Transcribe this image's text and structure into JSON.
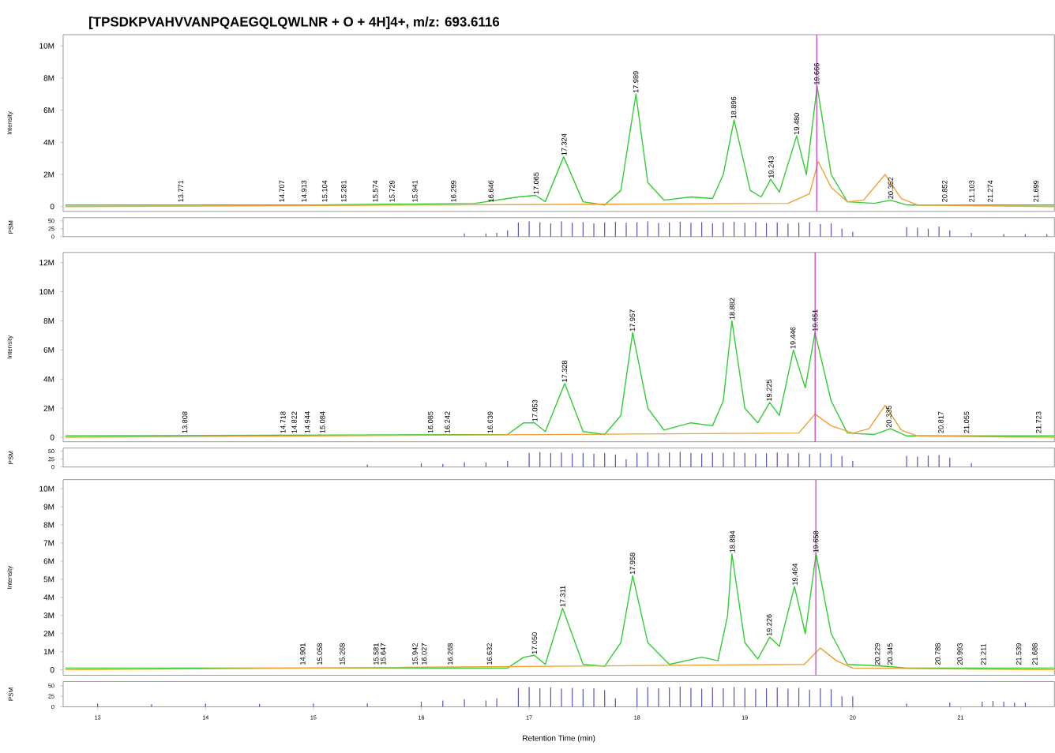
{
  "chart_data": [
    {
      "type": "line",
      "title": "[TPSDKPVAHVVANPQAEGQLQWLNR + O + 4H]4+, m/z: 693.6116",
      "ylabel": "Intensity",
      "xlim": [
        12.68,
        21.87
      ],
      "ylim": [
        -0.3,
        10.7
      ],
      "tick_labels": "y",
      "yticks": [
        0,
        {
          "value": 2,
          "label": "2M"
        },
        {
          "value": 4,
          "label": "4M"
        },
        {
          "value": 6,
          "label": "6M"
        },
        {
          "value": 8,
          "label": "8M"
        },
        {
          "value": 10,
          "label": "10M"
        }
      ],
      "series": [
        {
          "color": "#33cc33",
          "x": [
            12.7,
            15.0,
            16.5,
            16.9,
            17.06,
            17.15,
            17.32,
            17.5,
            17.7,
            17.85,
            17.99,
            18.1,
            18.25,
            18.5,
            18.7,
            18.8,
            18.9,
            19.05,
            19.15,
            19.24,
            19.32,
            19.48,
            19.57,
            19.67,
            19.8,
            19.95,
            20.2,
            20.35,
            20.5,
            21.87
          ],
          "values": [
            0.1,
            0.1,
            0.2,
            0.6,
            0.7,
            0.3,
            3.1,
            0.3,
            0.1,
            1.0,
            7.0,
            1.5,
            0.4,
            0.6,
            0.5,
            2.0,
            5.4,
            1.0,
            0.6,
            1.7,
            0.9,
            4.4,
            2.0,
            7.5,
            2.0,
            0.3,
            0.2,
            0.4,
            0.1,
            0.1
          ]
        },
        {
          "color": "#f0a030",
          "x": [
            12.7,
            19.4,
            19.6,
            19.68,
            19.8,
            19.95,
            20.1,
            20.3,
            20.45,
            20.6,
            21.87
          ],
          "values": [
            0,
            0.2,
            0.8,
            2.8,
            1.2,
            0.3,
            0.4,
            2.0,
            0.5,
            0.1,
            0
          ]
        }
      ],
      "ref_lines": [
        {
          "axis": "x",
          "value": 19.666,
          "color": "#cc33cc"
        }
      ],
      "annotations": [
        {
          "text": "13.771",
          "x": 13.771,
          "y": 0.2
        },
        {
          "text": "14.707",
          "x": 14.707,
          "y": 0.2
        },
        {
          "text": "14.913",
          "x": 14.913,
          "y": 0.2
        },
        {
          "text": "15.104",
          "x": 15.104,
          "y": 0.2
        },
        {
          "text": "15.281",
          "x": 15.281,
          "y": 0.2
        },
        {
          "text": "15.574",
          "x": 15.574,
          "y": 0.2
        },
        {
          "text": "15.729",
          "x": 15.729,
          "y": 0.2
        },
        {
          "text": "15.941",
          "x": 15.941,
          "y": 0.2
        },
        {
          "text": "16.299",
          "x": 16.299,
          "y": 0.2
        },
        {
          "text": "16.646",
          "x": 16.646,
          "y": 0.2
        },
        {
          "text": "17.065",
          "x": 17.065,
          "y": 0.7
        },
        {
          "text": "17.324",
          "x": 17.324,
          "y": 3.1
        },
        {
          "text": "17.989",
          "x": 17.989,
          "y": 7.0
        },
        {
          "text": "18.896",
          "x": 18.896,
          "y": 5.4
        },
        {
          "text": "19.243",
          "x": 19.243,
          "y": 1.7
        },
        {
          "text": "19.480",
          "x": 19.48,
          "y": 4.4
        },
        {
          "text": "19.666",
          "x": 19.666,
          "y": 7.5
        },
        {
          "text": "20.352",
          "x": 20.352,
          "y": 0.4
        },
        {
          "text": "20.852",
          "x": 20.852,
          "y": 0.2
        },
        {
          "text": "21.103",
          "x": 21.103,
          "y": 0.2
        },
        {
          "text": "21.274",
          "x": 21.274,
          "y": 0.2
        },
        {
          "text": "21.699",
          "x": 21.699,
          "y": 0.2
        }
      ]
    },
    {
      "type": "bar",
      "ylabel": "PSM",
      "xlim": [
        12.68,
        21.87
      ],
      "ylim": [
        0,
        60
      ],
      "yticks": [
        0,
        25,
        50
      ],
      "tick_labels": "y",
      "color": "#5555bb",
      "x": [
        16.4,
        16.6,
        16.7,
        16.8,
        16.9,
        17.0,
        17.1,
        17.2,
        17.3,
        17.4,
        17.5,
        17.6,
        17.7,
        17.8,
        17.9,
        18.0,
        18.1,
        18.2,
        18.3,
        18.4,
        18.5,
        18.6,
        18.7,
        18.8,
        18.9,
        19.0,
        19.1,
        19.2,
        19.3,
        19.4,
        19.5,
        19.6,
        19.7,
        19.8,
        19.9,
        20.0,
        20.5,
        20.6,
        20.7,
        20.8,
        20.9,
        21.1,
        21.4,
        21.6,
        21.8
      ],
      "values": [
        10,
        10,
        12,
        20,
        45,
        48,
        45,
        42,
        48,
        44,
        46,
        42,
        45,
        47,
        44,
        46,
        48,
        43,
        45,
        47,
        44,
        46,
        42,
        45,
        47,
        44,
        46,
        43,
        45,
        42,
        44,
        46,
        40,
        42,
        25,
        15,
        30,
        28,
        25,
        32,
        20,
        12,
        8,
        8,
        8
      ]
    },
    {
      "type": "line",
      "ylabel": "Intensity",
      "xlim": [
        12.68,
        21.87
      ],
      "ylim": [
        -0.3,
        12.7
      ],
      "tick_labels": "y",
      "yticks": [
        0,
        {
          "value": 2,
          "label": "2M"
        },
        {
          "value": 4,
          "label": "4M"
        },
        {
          "value": 6,
          "label": "6M"
        },
        {
          "value": 8,
          "label": "8M"
        },
        {
          "value": 10,
          "label": "10M"
        },
        {
          "value": 12,
          "label": "12M"
        }
      ],
      "series": [
        {
          "color": "#33cc33",
          "x": [
            12.7,
            16.8,
            16.95,
            17.05,
            17.15,
            17.33,
            17.5,
            17.7,
            17.85,
            17.96,
            18.1,
            18.25,
            18.5,
            18.7,
            18.8,
            18.88,
            19.0,
            19.12,
            19.23,
            19.32,
            19.45,
            19.56,
            19.65,
            19.8,
            19.95,
            20.2,
            20.35,
            20.5,
            21.87
          ],
          "values": [
            0.1,
            0.2,
            1.0,
            1.0,
            0.4,
            3.7,
            0.4,
            0.2,
            1.5,
            7.2,
            2.0,
            0.5,
            1.0,
            0.8,
            2.5,
            8.0,
            2.0,
            1.0,
            2.4,
            1.5,
            6.0,
            3.4,
            7.2,
            2.5,
            0.3,
            0.2,
            0.6,
            0.1,
            0.1
          ]
        },
        {
          "color": "#f0a030",
          "x": [
            12.7,
            19.5,
            19.65,
            19.8,
            20.0,
            20.15,
            20.3,
            20.45,
            20.6,
            21.87
          ],
          "values": [
            0,
            0.3,
            1.6,
            0.8,
            0.3,
            0.6,
            2.2,
            0.5,
            0.1,
            0
          ]
        }
      ],
      "ref_lines": [
        {
          "axis": "x",
          "value": 19.651,
          "color": "#cc33cc"
        }
      ],
      "annotations": [
        {
          "text": "13.808",
          "x": 13.808,
          "y": 0.2
        },
        {
          "text": "14.718",
          "x": 14.718,
          "y": 0.2
        },
        {
          "text": "14.822",
          "x": 14.822,
          "y": 0.2
        },
        {
          "text": "14.944",
          "x": 14.944,
          "y": 0.2
        },
        {
          "text": "15.084",
          "x": 15.084,
          "y": 0.2
        },
        {
          "text": "16.085",
          "x": 16.085,
          "y": 0.2
        },
        {
          "text": "16.242",
          "x": 16.242,
          "y": 0.2
        },
        {
          "text": "16.639",
          "x": 16.639,
          "y": 0.2
        },
        {
          "text": "17.053",
          "x": 17.053,
          "y": 1.0
        },
        {
          "text": "17.328",
          "x": 17.328,
          "y": 3.7
        },
        {
          "text": "17.957",
          "x": 17.957,
          "y": 7.2
        },
        {
          "text": "18.882",
          "x": 18.882,
          "y": 8.0
        },
        {
          "text": "19.225",
          "x": 19.225,
          "y": 2.4
        },
        {
          "text": "19.446",
          "x": 19.446,
          "y": 6.0
        },
        {
          "text": "19.651",
          "x": 19.651,
          "y": 7.2
        },
        {
          "text": "20.335",
          "x": 20.335,
          "y": 0.6
        },
        {
          "text": "20.817",
          "x": 20.817,
          "y": 0.2
        },
        {
          "text": "21.055",
          "x": 21.055,
          "y": 0.2
        },
        {
          "text": "21.723",
          "x": 21.723,
          "y": 0.2
        }
      ]
    },
    {
      "type": "bar",
      "ylabel": "PSM",
      "xlim": [
        12.68,
        21.87
      ],
      "ylim": [
        0,
        60
      ],
      "yticks": [
        0,
        25,
        50
      ],
      "tick_labels": "y",
      "color": "#5555bb",
      "x": [
        15.5,
        16.0,
        16.2,
        16.4,
        16.6,
        16.8,
        17.0,
        17.1,
        17.2,
        17.3,
        17.4,
        17.5,
        17.6,
        17.7,
        17.8,
        17.9,
        18.0,
        18.1,
        18.2,
        18.3,
        18.4,
        18.5,
        18.6,
        18.7,
        18.8,
        18.9,
        19.0,
        19.1,
        19.2,
        19.3,
        19.4,
        19.5,
        19.6,
        19.7,
        19.8,
        19.9,
        20.0,
        20.5,
        20.6,
        20.7,
        20.8,
        20.9,
        21.1
      ],
      "values": [
        8,
        12,
        10,
        15,
        15,
        20,
        45,
        47,
        44,
        46,
        43,
        45,
        42,
        44,
        40,
        25,
        45,
        47,
        44,
        46,
        48,
        45,
        43,
        46,
        44,
        47,
        45,
        42,
        44,
        46,
        43,
        45,
        41,
        44,
        42,
        35,
        20,
        35,
        33,
        36,
        38,
        30,
        12
      ]
    },
    {
      "type": "line",
      "ylabel": "Intensity",
      "xlim": [
        12.68,
        21.87
      ],
      "ylim": [
        -0.3,
        10.5
      ],
      "tick_labels": "y",
      "yticks": [
        0,
        {
          "value": 1,
          "label": "1M"
        },
        {
          "value": 2,
          "label": "2M"
        },
        {
          "value": 3,
          "label": "3M"
        },
        {
          "value": 4,
          "label": "4M"
        },
        {
          "value": 5,
          "label": "5M"
        },
        {
          "value": 6,
          "label": "6M"
        },
        {
          "value": 7,
          "label": "7M"
        },
        {
          "value": 8,
          "label": "8M"
        },
        {
          "value": 9,
          "label": "9M"
        },
        {
          "value": 10,
          "label": "10M"
        }
      ],
      "series": [
        {
          "color": "#33cc33",
          "x": [
            12.7,
            16.8,
            16.95,
            17.05,
            17.15,
            17.31,
            17.5,
            17.7,
            17.85,
            17.96,
            18.1,
            18.3,
            18.6,
            18.75,
            18.84,
            18.88,
            19.0,
            19.12,
            19.23,
            19.32,
            19.46,
            19.56,
            19.66,
            19.8,
            19.95,
            20.3,
            20.5,
            21.87
          ],
          "values": [
            0.1,
            0.1,
            0.7,
            0.8,
            0.3,
            3.4,
            0.3,
            0.2,
            1.5,
            5.2,
            1.5,
            0.3,
            0.7,
            0.5,
            3.0,
            6.4,
            1.5,
            0.6,
            1.8,
            1.3,
            4.6,
            2.0,
            6.4,
            2.0,
            0.3,
            0.2,
            0.1,
            0.1
          ]
        },
        {
          "color": "#f0a030",
          "x": [
            12.7,
            19.55,
            19.7,
            19.85,
            20.0,
            21.87
          ],
          "values": [
            0,
            0.3,
            1.2,
            0.5,
            0.1,
            0
          ]
        }
      ],
      "ref_lines": [
        {
          "axis": "x",
          "value": 19.658,
          "color": "#cc33cc"
        }
      ],
      "annotations": [
        {
          "text": "14.901",
          "x": 14.901,
          "y": 0.2
        },
        {
          "text": "15.058",
          "x": 15.058,
          "y": 0.2
        },
        {
          "text": "15.268",
          "x": 15.268,
          "y": 0.2
        },
        {
          "text": "15.581",
          "x": 15.581,
          "y": 0.2
        },
        {
          "text": "15.647",
          "x": 15.647,
          "y": 0.2
        },
        {
          "text": "15.942",
          "x": 15.942,
          "y": 0.2
        },
        {
          "text": "16.027",
          "x": 16.027,
          "y": 0.2
        },
        {
          "text": "16.268",
          "x": 16.268,
          "y": 0.2
        },
        {
          "text": "16.632",
          "x": 16.632,
          "y": 0.2
        },
        {
          "text": "17.050",
          "x": 17.05,
          "y": 0.8
        },
        {
          "text": "17.311",
          "x": 17.311,
          "y": 3.4
        },
        {
          "text": "17.958",
          "x": 17.958,
          "y": 5.2
        },
        {
          "text": "18.884",
          "x": 18.884,
          "y": 6.4
        },
        {
          "text": "19.226",
          "x": 19.226,
          "y": 1.8
        },
        {
          "text": "19.464",
          "x": 19.464,
          "y": 4.6
        },
        {
          "text": "19.658",
          "x": 19.658,
          "y": 6.4
        },
        {
          "text": "20.229",
          "x": 20.229,
          "y": 0.2
        },
        {
          "text": "20.345",
          "x": 20.345,
          "y": 0.2
        },
        {
          "text": "20.788",
          "x": 20.788,
          "y": 0.2
        },
        {
          "text": "20.993",
          "x": 20.993,
          "y": 0.2
        },
        {
          "text": "21.211",
          "x": 21.211,
          "y": 0.2
        },
        {
          "text": "21.539",
          "x": 21.539,
          "y": 0.2
        },
        {
          "text": "21.688",
          "x": 21.688,
          "y": 0.2
        }
      ]
    },
    {
      "type": "bar",
      "ylabel": "PSM",
      "xlabel": "Retention Time (min)",
      "xlim": [
        12.68,
        21.87
      ],
      "ylim": [
        0,
        60
      ],
      "yticks": [
        0,
        25,
        50
      ],
      "xticks": [
        13,
        14,
        15,
        16,
        17,
        18,
        19,
        20,
        21
      ],
      "color": "#5555bb",
      "x": [
        13.0,
        13.5,
        14.0,
        14.5,
        15.0,
        15.5,
        16.0,
        16.2,
        16.4,
        16.6,
        16.7,
        16.9,
        17.0,
        17.1,
        17.2,
        17.3,
        17.4,
        17.5,
        17.6,
        17.7,
        17.8,
        18.0,
        18.1,
        18.2,
        18.3,
        18.4,
        18.5,
        18.6,
        18.7,
        18.8,
        18.9,
        19.0,
        19.1,
        19.2,
        19.3,
        19.4,
        19.5,
        19.6,
        19.7,
        19.8,
        19.9,
        20.0,
        20.5,
        20.9,
        21.2,
        21.3,
        21.4,
        21.5,
        21.6
      ],
      "values": [
        8,
        6,
        8,
        7,
        8,
        8,
        12,
        15,
        18,
        15,
        20,
        45,
        47,
        44,
        46,
        43,
        45,
        42,
        44,
        40,
        20,
        45,
        47,
        44,
        46,
        48,
        45,
        43,
        46,
        44,
        47,
        45,
        42,
        44,
        46,
        43,
        45,
        41,
        44,
        42,
        25,
        25,
        8,
        10,
        12,
        14,
        12,
        10,
        10
      ]
    }
  ]
}
